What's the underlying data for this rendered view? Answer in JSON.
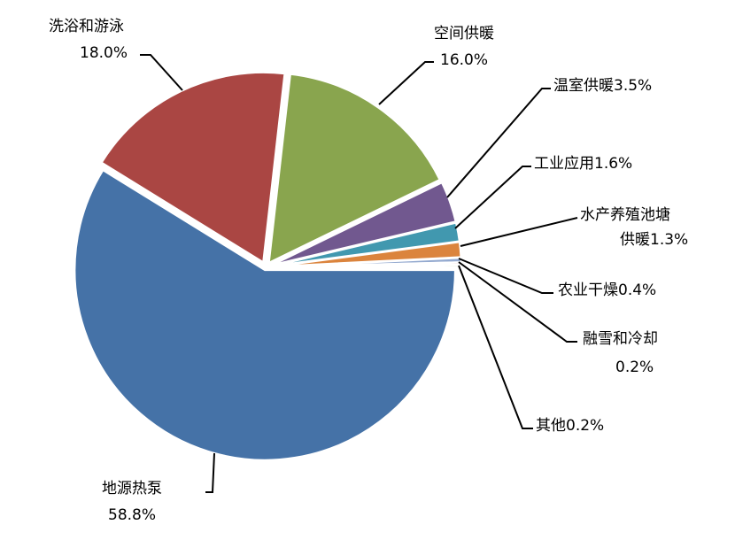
{
  "chart_data": {
    "type": "pie",
    "start_angle": "3 o'clock, clockwise",
    "slices": [
      {
        "name": "地源热泵",
        "value": 58.8,
        "label": "58.8%",
        "color": "#4572A7"
      },
      {
        "name": "洗浴和游泳",
        "value": 18.0,
        "label": "18.0%",
        "color": "#AA4643"
      },
      {
        "name": "空间供暖",
        "value": 16.0,
        "label": "16.0%",
        "color": "#89A54E"
      },
      {
        "name": "温室供暖",
        "value": 3.5,
        "label": "3.5%",
        "color": "#71588F"
      },
      {
        "name": "工业应用",
        "value": 1.6,
        "label": "1.6%",
        "color": "#4198AF"
      },
      {
        "name": "水产养殖池塘供暖",
        "value": 1.3,
        "label": "1.3%",
        "color": "#DB843D"
      },
      {
        "name": "农业干燥",
        "value": 0.4,
        "label": "0.4%",
        "color": "#93A9CF"
      },
      {
        "name": "融雪和冷却",
        "value": 0.2,
        "label": "0.2%",
        "color": "#D19392"
      },
      {
        "name": "其他",
        "value": 0.2,
        "label": "0.2%",
        "color": "#B9CD96"
      }
    ],
    "labels": {
      "s0": [
        "地源热泵",
        "58.8%"
      ],
      "s1": [
        "洗浴和游泳",
        "18.0%"
      ],
      "s2": [
        "空间供暖",
        "16.0%"
      ],
      "s3": [
        "温室供暖3.5%"
      ],
      "s4": [
        "工业应用1.6%"
      ],
      "s5": [
        "水产养殖池塘",
        "供暖1.3%"
      ],
      "s6": [
        "农业干燥0.4%"
      ],
      "s7": [
        "融雪和冷却",
        "0.2%"
      ],
      "s8": [
        "其他0.2%"
      ]
    }
  }
}
